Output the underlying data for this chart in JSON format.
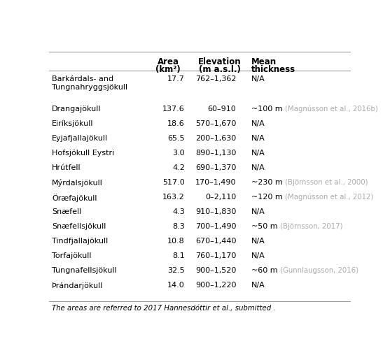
{
  "headers_line1": [
    "Area",
    "Elevation",
    "Mean"
  ],
  "headers_line2": [
    "(km²)",
    "(m a.s.l.)",
    "thickness"
  ],
  "rows": [
    {
      "name": "Barkárdals- and\nTungnahryggsjökull",
      "area": "17.7",
      "elevation": "762–1,362",
      "thickness_main": "N/A",
      "thickness_ref": ""
    },
    {
      "name": "Drangajökull",
      "area": "137.6",
      "elevation": "60–910",
      "thickness_main": "~100 m",
      "thickness_ref": "(Magnússon et al., 2016b)"
    },
    {
      "name": "Eiríksjökull",
      "area": "18.6",
      "elevation": "570–1,670",
      "thickness_main": "N/A",
      "thickness_ref": ""
    },
    {
      "name": "Eyjafjallajökull",
      "area": "65.5",
      "elevation": "200–1,630",
      "thickness_main": "N/A",
      "thickness_ref": ""
    },
    {
      "name": "Hofsjökull Eystri",
      "area": "3.0",
      "elevation": "890–1,130",
      "thickness_main": "N/A",
      "thickness_ref": ""
    },
    {
      "name": "Hrútfell",
      "area": "4.2",
      "elevation": "690–1,370",
      "thickness_main": "N/A",
      "thickness_ref": ""
    },
    {
      "name": "Mýrdalsjökull",
      "area": "517.0",
      "elevation": "170–1,490",
      "thickness_main": "~230 m",
      "thickness_ref": "(Björnsson et al., 2000)"
    },
    {
      "name": "Öræfajökull",
      "area": "163.2",
      "elevation": "0–2,110",
      "thickness_main": "~120 m",
      "thickness_ref": "(Magnússon et al., 2012)"
    },
    {
      "name": "Snæfell",
      "area": "4.3",
      "elevation": "910–1,830",
      "thickness_main": "N/A",
      "thickness_ref": ""
    },
    {
      "name": "Snæfellsjökull",
      "area": "8.3",
      "elevation": "700–1,490",
      "thickness_main": "~50 m",
      "thickness_ref": "(Björnsson, 2017)"
    },
    {
      "name": "Tindfjallajökull",
      "area": "10.8",
      "elevation": "670–1,440",
      "thickness_main": "N/A",
      "thickness_ref": ""
    },
    {
      "name": "Torfajökull",
      "area": "8.1",
      "elevation": "760–1,170",
      "thickness_main": "N/A",
      "thickness_ref": ""
    },
    {
      "name": "Tungnafellsjökull",
      "area": "32.5",
      "elevation": "900–1,520",
      "thickness_main": "~60 m",
      "thickness_ref": "(Gunnlaugsson, 2016)"
    },
    {
      "name": "Þrándarjökull",
      "area": "14.0",
      "elevation": "900–1,220",
      "thickness_main": "N/A",
      "thickness_ref": ""
    }
  ],
  "footnote": "The areas are referred to 2017 Hannesdóttir et al., submitted .",
  "ref_color": "#aaaaaa",
  "background_color": "#ffffff",
  "line_color": "#999999",
  "main_font_size": 8.0,
  "header_font_size": 8.5,
  "ref_font_size": 7.3
}
